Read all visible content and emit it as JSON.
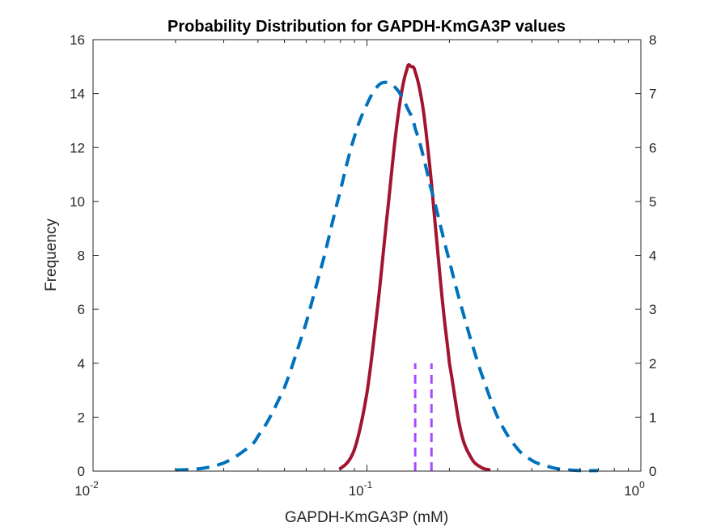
{
  "chart_data": {
    "type": "line",
    "title": "Probability Distribution for GAPDH-KmGA3P values",
    "xlabel": "GAPDH-KmGA3P (mM)",
    "ylabel": "Frequency",
    "x_scale": "log",
    "xlim": [
      0.01,
      1
    ],
    "ylim_left": [
      0,
      16
    ],
    "ylim_right": [
      0,
      8
    ],
    "x_ticks": [
      {
        "value": 0.01,
        "base": "10",
        "exp": "-2"
      },
      {
        "value": 0.1,
        "base": "10",
        "exp": "-1"
      },
      {
        "value": 1,
        "base": "10",
        "exp": "0"
      }
    ],
    "y_ticks_left": [
      "0",
      "2",
      "4",
      "6",
      "8",
      "10",
      "12",
      "14",
      "16"
    ],
    "y_ticks_right": [
      "0",
      "1",
      "2",
      "3",
      "4",
      "5",
      "6",
      "7",
      "8"
    ],
    "grid": false,
    "series": [
      {
        "color": "#a2142f",
        "style": "solid",
        "axis": "left",
        "x": [
          0.08,
          0.09,
          0.1,
          0.11,
          0.12,
          0.13,
          0.14,
          0.145,
          0.15,
          0.16,
          0.17,
          0.18,
          0.19,
          0.2,
          0.22,
          0.24,
          0.26,
          0.28
        ],
        "y": [
          0.1,
          0.8,
          2.9,
          6.3,
          10.0,
          13.2,
          14.9,
          15.0,
          14.8,
          13.5,
          11.2,
          8.5,
          6.0,
          4.0,
          1.5,
          0.5,
          0.15,
          0.05
        ]
      },
      {
        "color": "#0072bd",
        "style": "dashed",
        "axis": "right",
        "x": [
          0.02,
          0.025,
          0.03,
          0.035,
          0.04,
          0.05,
          0.06,
          0.07,
          0.08,
          0.09,
          0.1,
          0.11,
          0.12,
          0.13,
          0.14,
          0.15,
          0.17,
          0.2,
          0.23,
          0.26,
          0.3,
          0.35,
          0.4,
          0.45,
          0.5,
          0.6,
          0.7
        ],
        "y": [
          0.02,
          0.05,
          0.15,
          0.35,
          0.65,
          1.55,
          2.75,
          4.0,
          5.2,
          6.2,
          6.8,
          7.15,
          7.2,
          7.05,
          6.75,
          6.35,
          5.3,
          3.9,
          2.75,
          1.85,
          1.0,
          0.45,
          0.2,
          0.1,
          0.04,
          0.01,
          0.01
        ]
      },
      {
        "color": "#a64dff",
        "style": "dashed",
        "axis": "left",
        "x": [
          0.15,
          0.15
        ],
        "y": [
          0,
          4
        ]
      },
      {
        "color": "#a64dff",
        "style": "dashed",
        "axis": "left",
        "x": [
          0.172,
          0.172
        ],
        "y": [
          0,
          4
        ]
      }
    ]
  }
}
